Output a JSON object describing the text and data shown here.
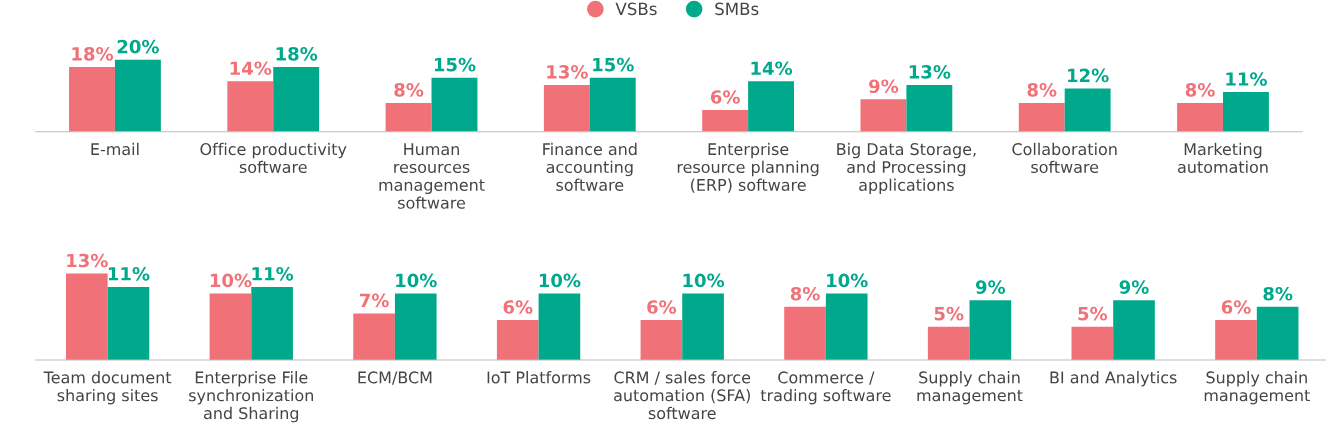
{
  "chart_data": [
    {
      "type": "bar",
      "categories": [
        "E-mail",
        "Office productivity\nsoftware",
        "Human\nresources\nmanagement\nsoftware",
        "Finance and\naccounting\nsoftware",
        "Enterprise\nresource planning\n(ERP) software",
        "Big Data Storage,\nand Processing\napplications",
        "Collaboration\nsoftware",
        "Marketing\nautomation"
      ],
      "series": [
        {
          "name": "VSBs",
          "color": "#f07178",
          "values": [
            18,
            14,
            8,
            13,
            6,
            9,
            8,
            8
          ],
          "value_labels": [
            "18%",
            "14%",
            "8%",
            "13%",
            "6%",
            "9%",
            "8%",
            "8%"
          ]
        },
        {
          "name": "SMBs",
          "color": "#00a98b",
          "values": [
            20,
            18,
            15,
            15,
            14,
            13,
            12,
            11
          ],
          "value_labels": [
            "20%",
            "18%",
            "15%",
            "15%",
            "14%",
            "13%",
            "12%",
            "11%"
          ]
        }
      ],
      "tick_labels": "x",
      "grid": false,
      "legend": "top"
    },
    {
      "type": "bar",
      "categories": [
        "Team document\nsharing sites",
        "Enterprise File\nsynchronization\nand Sharing",
        "ECM/BCM",
        "IoT Platforms",
        "CRM / sales force\nautomation (SFA)\nsoftware",
        "Commerce /\ntrading software",
        "Supply chain\nmanagement",
        "BI and Analytics",
        "Supply chain\nmanagement"
      ],
      "series": [
        {
          "color": "#f07178",
          "values": [
            13,
            10,
            7,
            6,
            6,
            8,
            5,
            5,
            6
          ],
          "value_labels": [
            "13%",
            "10%",
            "7%",
            "6%",
            "6%",
            "8%",
            "5%",
            "5%",
            "6%"
          ]
        },
        {
          "color": "#00a98b",
          "values": [
            11,
            11,
            10,
            10,
            10,
            10,
            9,
            9,
            8
          ],
          "value_labels": [
            "11%",
            "11%",
            "10%",
            "10%",
            "10%",
            "10%",
            "9%",
            "9%",
            "8%"
          ]
        }
      ],
      "tick_labels": "x",
      "grid": false,
      "legend": false
    }
  ]
}
